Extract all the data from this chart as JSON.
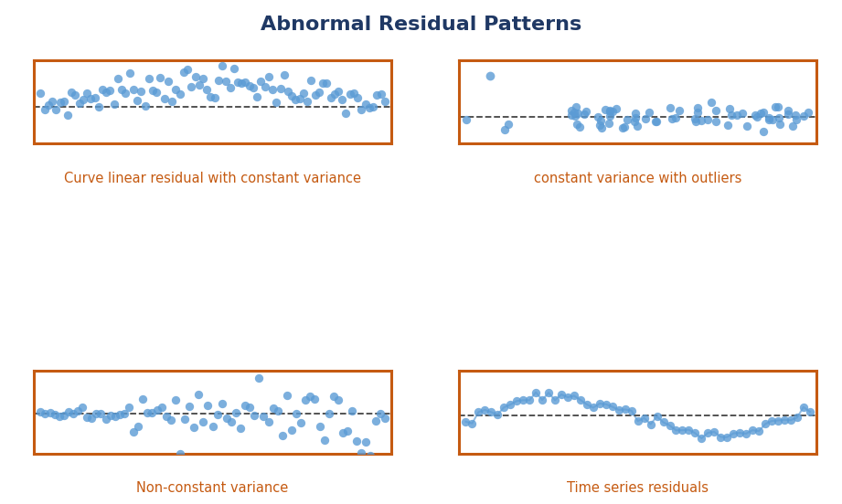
{
  "title": "Abnormal Residual Patterns",
  "title_color": "#1F3864",
  "title_fontsize": 16,
  "title_fontweight": "bold",
  "background_color": "#ffffff",
  "dot_color": "#5B9BD5",
  "dot_alpha": 0.8,
  "dot_size": 45,
  "border_color": "#C55A11",
  "border_linewidth": 2.2,
  "dashed_color": "#444444",
  "label_color": "#C55A11",
  "label_fontsize": 10.5,
  "labels": [
    "Curve linear residual with constant variance",
    "constant variance with outliers",
    "Non-constant variance",
    "Time series residuals"
  ],
  "seed": 7
}
